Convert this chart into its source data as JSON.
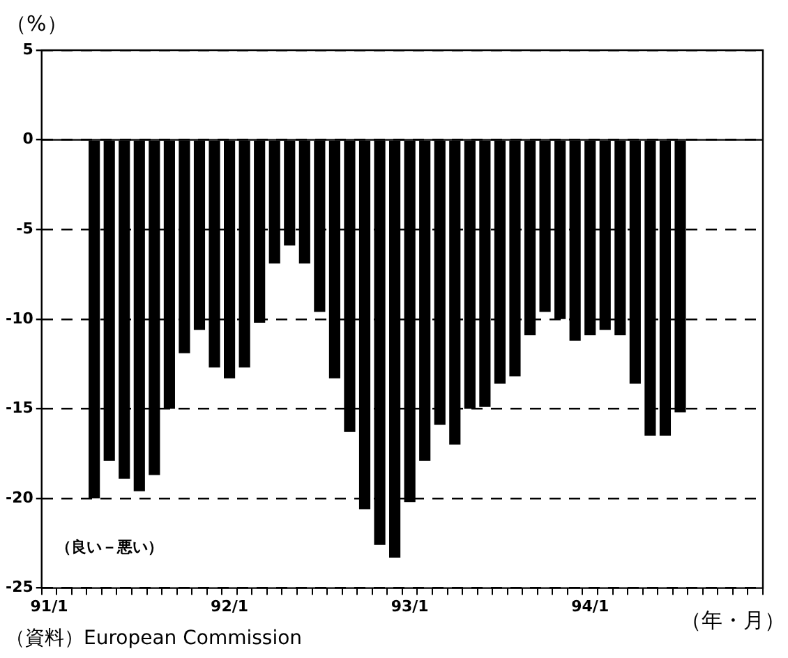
{
  "chart_data": {
    "type": "bar",
    "ylabel": "（%）",
    "xlabel": "（年・月）",
    "categories": [
      "91/1",
      null,
      null,
      null,
      null,
      null,
      null,
      null,
      null,
      null,
      null,
      null,
      "92/1",
      null,
      null,
      null,
      null,
      null,
      null,
      null,
      null,
      null,
      null,
      null,
      "93/1",
      null,
      null,
      null,
      null,
      null,
      null,
      null,
      null,
      null,
      null,
      null,
      "94/1",
      null,
      null,
      null,
      null,
      null,
      null,
      null,
      null,
      null,
      null,
      null
    ],
    "values": [
      null,
      null,
      null,
      -20.0,
      -17.9,
      -18.9,
      -19.6,
      -18.7,
      -15.0,
      -11.9,
      -10.6,
      -12.7,
      -13.3,
      -12.7,
      -10.2,
      -6.9,
      -5.9,
      -6.9,
      -9.6,
      -13.3,
      -16.3,
      -20.6,
      -22.6,
      -23.3,
      -20.2,
      -17.9,
      -15.9,
      -17.0,
      -15.0,
      -14.9,
      -13.6,
      -13.2,
      -10.9,
      -9.6,
      -10.0,
      -11.2,
      -10.9,
      -10.6,
      -10.9,
      -13.6,
      -16.5,
      -16.5,
      -15.2,
      null,
      null,
      null,
      null,
      null
    ],
    "color": "#000000",
    "ylim": [
      -25,
      5
    ],
    "yticks": [
      -25,
      -20,
      -15,
      -10,
      -5,
      0,
      5
    ],
    "grid": "y",
    "annotations": [
      "（良い－悪い）",
      "（資料）European Commission"
    ]
  }
}
